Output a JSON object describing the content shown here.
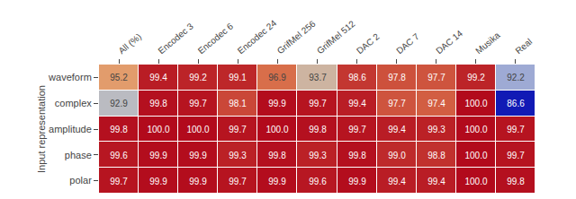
{
  "chart_data": {
    "type": "heatmap",
    "x": [
      "All (%)",
      "Encodec 3",
      "Encodec 6",
      "Encodec 24",
      "GrifMel 256",
      "GrifMel 512",
      "DAC 2",
      "DAC 7",
      "DAC 14",
      "Musika",
      "Real"
    ],
    "y": [
      "waveform",
      "complex",
      "amplitude",
      "phase",
      "polar"
    ],
    "values": [
      [
        95.2,
        99.4,
        99.2,
        99.1,
        96.9,
        93.7,
        98.6,
        97.8,
        97.7,
        99.2,
        92.2
      ],
      [
        92.9,
        99.8,
        99.7,
        98.1,
        99.9,
        99.7,
        99.4,
        97.7,
        97.4,
        100.0,
        86.6
      ],
      [
        99.8,
        100.0,
        100.0,
        99.7,
        100.0,
        99.8,
        99.7,
        99.4,
        99.3,
        100.0,
        99.7
      ],
      [
        99.6,
        99.9,
        99.9,
        99.3,
        99.8,
        99.3,
        99.8,
        99.0,
        98.8,
        100.0,
        99.7
      ],
      [
        99.7,
        99.9,
        99.9,
        99.7,
        99.9,
        99.6,
        99.9,
        99.4,
        99.4,
        100.0,
        99.8
      ]
    ],
    "value_labels": [
      [
        "95.2",
        "99.4",
        "99.2",
        "99.1",
        "96.9",
        "93.7",
        "98.6",
        "97.8",
        "97.7",
        "99.2",
        "92.2"
      ],
      [
        "92.9",
        "99.8",
        "99.7",
        "98.1",
        "99.9",
        "99.7",
        "99.4",
        "97.7",
        "97.4",
        "100.0",
        "86.6"
      ],
      [
        "99.8",
        "100.0",
        "100.0",
        "99.7",
        "100.0",
        "99.8",
        "99.7",
        "99.4",
        "99.3",
        "100.0",
        "99.7"
      ],
      [
        "99.6",
        "99.9",
        "99.9",
        "99.3",
        "99.8",
        "99.3",
        "99.8",
        "99.0",
        "98.8",
        "100.0",
        "99.7"
      ],
      [
        "99.7",
        "99.9",
        "99.9",
        "99.7",
        "99.9",
        "99.6",
        "99.9",
        "99.4",
        "99.4",
        "100.0",
        "99.8"
      ]
    ],
    "zlim": [
      86.0,
      100.0
    ],
    "ylabel": "Input representation",
    "data_labels": true,
    "grid": false
  }
}
